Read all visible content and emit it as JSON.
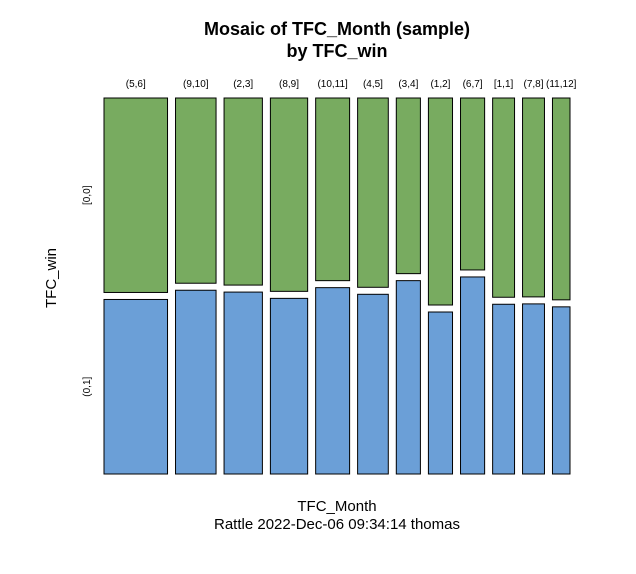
{
  "chart_data": {
    "type": "mosaic",
    "title_line1": "Mosaic of TFC_Month (sample)",
    "title_line2": "by TFC_win",
    "xlabel": "TFC_Month",
    "subtitle": "Rattle 2022-Dec-06 09:34:14 thomas",
    "ylabel": "TFC_win",
    "categories": [
      "(5,6]",
      "(9,10]",
      "(2,3]",
      "(8,9]",
      "(10,11]",
      "(4,5]",
      "(3,4]",
      "(1,2]",
      "(6,7]",
      "[1,1]",
      "(7,8]",
      "(11,12]"
    ],
    "levels": [
      "[0,0]",
      "(0,1]"
    ],
    "column_share": [
      0.1652,
      0.1054,
      0.0997,
      0.0969,
      0.0883,
      0.0798,
      0.0627,
      0.0627,
      0.0627,
      0.057,
      0.057,
      0.0456
    ],
    "series": [
      {
        "name": "[0,0]",
        "values": [
          0.527,
          0.502,
          0.507,
          0.524,
          0.495,
          0.513,
          0.476,
          0.561,
          0.466,
          0.54,
          0.539,
          0.547
        ]
      },
      {
        "name": "(0,1]",
        "values": [
          0.473,
          0.498,
          0.493,
          0.476,
          0.505,
          0.487,
          0.524,
          0.439,
          0.534,
          0.46,
          0.461,
          0.453
        ]
      }
    ],
    "colors": {
      "[0,0]": "#78ab60",
      "(0,1]": "#6b9fd7",
      "border": "#000000"
    }
  }
}
